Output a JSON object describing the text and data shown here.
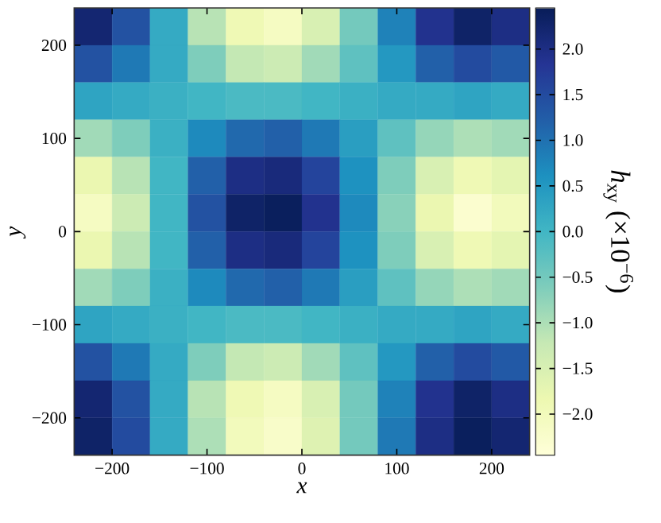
{
  "chart_data": {
    "type": "heatmap",
    "xlabel": "x",
    "ylabel": "y",
    "clabel": "*h*$_{xy}$ (×10$^{−6}$)",
    "x": [
      -220,
      -180,
      -140,
      -100,
      -60,
      -20,
      20,
      60,
      100,
      140,
      180,
      220
    ],
    "y": [
      220,
      180,
      140,
      100,
      60,
      20,
      -20,
      -60,
      -100,
      -140,
      -180,
      -220
    ],
    "xlim": [
      -240,
      240
    ],
    "ylim": [
      -240,
      240
    ],
    "xticks": [
      {
        "value": -200,
        "label": "−200"
      },
      {
        "value": -100,
        "label": "−100"
      },
      0,
      100,
      200
    ],
    "yticks": [
      {
        "value": -200,
        "label": "−200"
      },
      {
        "value": -100,
        "label": "−100"
      },
      0,
      100,
      200
    ],
    "clim": [
      -2.45,
      2.45
    ],
    "cticks": [
      {
        "value": -2.0,
        "label": "−2.0"
      },
      {
        "value": -1.5,
        "label": "−1.5"
      },
      {
        "value": -1.0,
        "label": "−1.0"
      },
      {
        "value": -0.5,
        "label": "−0.5"
      },
      {
        "value": 0.0,
        "label": "0.0"
      },
      {
        "value": 0.5,
        "label": "0.5"
      },
      {
        "value": 1.0,
        "label": "1.0"
      },
      {
        "value": 1.5,
        "label": "1.5"
      },
      {
        "value": 2.0,
        "label": "2.0"
      }
    ],
    "cells": [
      [
        2.2,
        1.4,
        0.2,
        -1.1,
        -1.9,
        -2.1,
        -1.5,
        -0.5,
        0.8,
        1.9,
        2.3,
        2.0
      ],
      [
        1.4,
        0.9,
        0.2,
        -0.6,
        -1.2,
        -1.3,
        -0.9,
        -0.3,
        0.5,
        1.2,
        1.5,
        1.3
      ],
      [
        0.3,
        0.2,
        0.1,
        0.0,
        -0.1,
        -0.1,
        0.0,
        0.1,
        0.2,
        0.2,
        0.3,
        0.2
      ],
      [
        -0.9,
        -0.6,
        0.1,
        0.7,
        1.1,
        1.2,
        0.9,
        0.4,
        -0.3,
        -0.8,
        -1.0,
        -0.9
      ],
      [
        -1.8,
        -1.1,
        0.0,
        1.2,
        2.0,
        2.1,
        1.6,
        0.6,
        -0.6,
        -1.5,
        -1.9,
        -1.7
      ],
      [
        -2.1,
        -1.3,
        0.0,
        1.4,
        2.3,
        2.4,
        1.9,
        0.7,
        -0.7,
        -1.8,
        -2.3,
        -2.0
      ],
      [
        -1.8,
        -1.1,
        0.0,
        1.2,
        2.0,
        2.1,
        1.6,
        0.6,
        -0.6,
        -1.5,
        -1.9,
        -1.7
      ],
      [
        -0.9,
        -0.6,
        0.1,
        0.7,
        1.1,
        1.2,
        0.9,
        0.4,
        -0.3,
        -0.8,
        -1.0,
        -0.9
      ],
      [
        0.3,
        0.2,
        0.1,
        0.0,
        -0.1,
        -0.1,
        0.0,
        0.1,
        0.2,
        0.2,
        0.3,
        0.2
      ],
      [
        1.4,
        0.9,
        0.2,
        -0.6,
        -1.2,
        -1.3,
        -0.9,
        -0.3,
        0.5,
        1.2,
        1.5,
        1.3
      ],
      [
        2.2,
        1.4,
        0.2,
        -1.1,
        -1.9,
        -2.1,
        -1.5,
        -0.5,
        0.8,
        1.9,
        2.3,
        2.0
      ],
      [
        2.3,
        1.5,
        0.2,
        -1.0,
        -2.0,
        -2.2,
        -1.6,
        -0.5,
        0.9,
        2.0,
        2.4,
        2.2
      ]
    ]
  }
}
